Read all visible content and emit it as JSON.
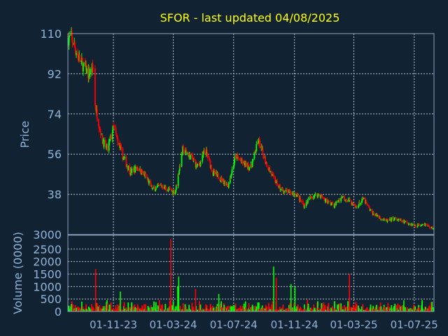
{
  "chart_data": [
    {
      "type": "candlestick",
      "title": "SFOR - last updated 04/08/2025",
      "ylabel": "Price",
      "ylim": [
        20,
        110
      ],
      "y_ticks": [
        110,
        92,
        74,
        56,
        38,
        3000
      ],
      "x_ticks": [
        "01-11-23",
        "01-03-24",
        "01-07-24",
        "01-11-24",
        "01-03-25",
        "01-07-25"
      ],
      "grid": true,
      "up_color": "#00ff00",
      "down_color": "#ff0000",
      "series": [
        {
          "x": [
            "2023-08-08",
            "2023-08-25",
            "2023-09-12",
            "2023-09-22",
            "2023-09-25",
            "2023-10-10",
            "2023-10-20",
            "2023-11-01",
            "2023-11-20",
            "2023-12-05",
            "2023-12-20",
            "2024-01-05",
            "2024-01-20",
            "2024-02-05",
            "2024-02-20",
            "2024-03-05",
            "2024-03-20",
            "2024-04-05",
            "2024-04-20",
            "2024-05-05",
            "2024-05-20",
            "2024-06-05",
            "2024-06-20",
            "2024-07-05",
            "2024-07-20",
            "2024-08-05",
            "2024-08-20",
            "2024-09-05",
            "2024-09-20",
            "2024-10-05",
            "2024-10-20",
            "2024-11-05",
            "2024-11-20",
            "2024-12-05",
            "2024-12-20",
            "2025-01-05",
            "2025-01-20",
            "2025-02-05",
            "2025-02-20",
            "2025-03-05",
            "2025-03-20",
            "2025-04-05",
            "2025-04-20",
            "2025-05-05",
            "2025-05-20",
            "2025-06-05",
            "2025-06-20",
            "2025-07-05",
            "2025-07-20",
            "2025-08-04"
          ],
          "close": [
            108,
            98,
            92,
            95,
            78,
            62,
            58,
            68,
            55,
            48,
            50,
            46,
            40,
            42,
            40,
            39,
            58,
            55,
            50,
            58,
            48,
            45,
            42,
            55,
            52,
            50,
            62,
            52,
            45,
            40,
            39,
            38,
            33,
            37,
            38,
            35,
            33,
            37,
            35,
            32,
            36,
            30,
            28,
            26,
            27,
            26,
            25,
            24,
            25,
            23
          ]
        }
      ]
    },
    {
      "type": "bar",
      "ylabel": "Volume (0000)",
      "ylim": [
        0,
        3000
      ],
      "y_ticks": [
        0,
        500,
        1000,
        1500,
        2000,
        2500
      ],
      "x_ticks": [
        "01-11-23",
        "01-03-24",
        "01-07-24",
        "01-11-24",
        "01-03-25",
        "01-07-25"
      ],
      "series": [
        {
          "x": [
            "2023-08-08",
            "2023-09-26",
            "2023-10-01",
            "2023-11-15",
            "2024-02-25",
            "2024-03-10",
            "2024-03-12",
            "2024-04-15",
            "2024-06-01",
            "2024-09-20",
            "2024-09-25",
            "2024-10-25",
            "2024-11-02",
            "2025-02-20",
            "2025-06-10"
          ],
          "values": [
            300,
            1700,
            200,
            800,
            2900,
            1000,
            1400,
            900,
            700,
            1800,
            1350,
            1100,
            1000,
            1500,
            450
          ]
        }
      ]
    }
  ]
}
